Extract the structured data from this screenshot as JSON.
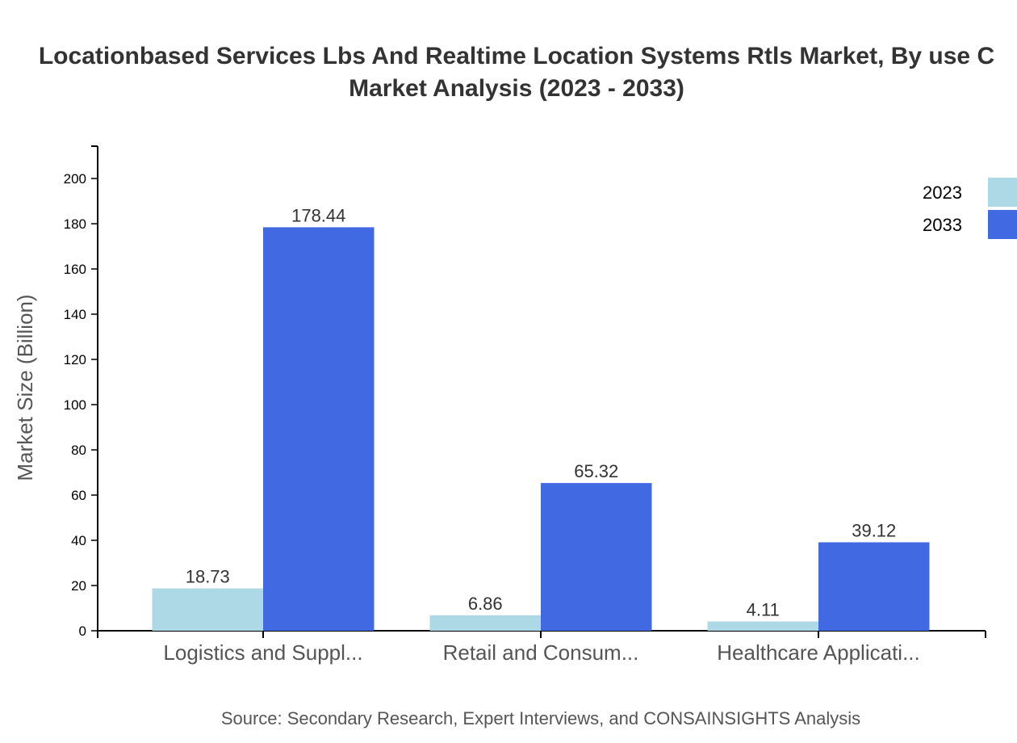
{
  "chart_data": {
    "type": "bar",
    "title": [
      "Locationbased Services Lbs And Realtime Location Systems Rtls Market, By use C",
      "Market Analysis (2023 - 2033)"
    ],
    "xlabel": "",
    "ylabel": "Market Size (Billion)",
    "categories": [
      "Logistics and Suppl...",
      "Retail and Consum...",
      "Healthcare Applicati..."
    ],
    "series": [
      {
        "name": "2023",
        "values": [
          18.73,
          6.86,
          4.11
        ],
        "color": "#add8e6"
      },
      {
        "name": "2033",
        "values": [
          178.44,
          65.32,
          39.12
        ],
        "color": "#4169e1"
      }
    ],
    "yticks": [
      0,
      20,
      40,
      60,
      80,
      100,
      120,
      140,
      160,
      180,
      200
    ],
    "ylim": [
      0,
      214.3
    ],
    "grid": false,
    "legend": "top-right",
    "source": "Source: Secondary Research, Expert Interviews, and CONSAINSIGHTS Analysis"
  }
}
